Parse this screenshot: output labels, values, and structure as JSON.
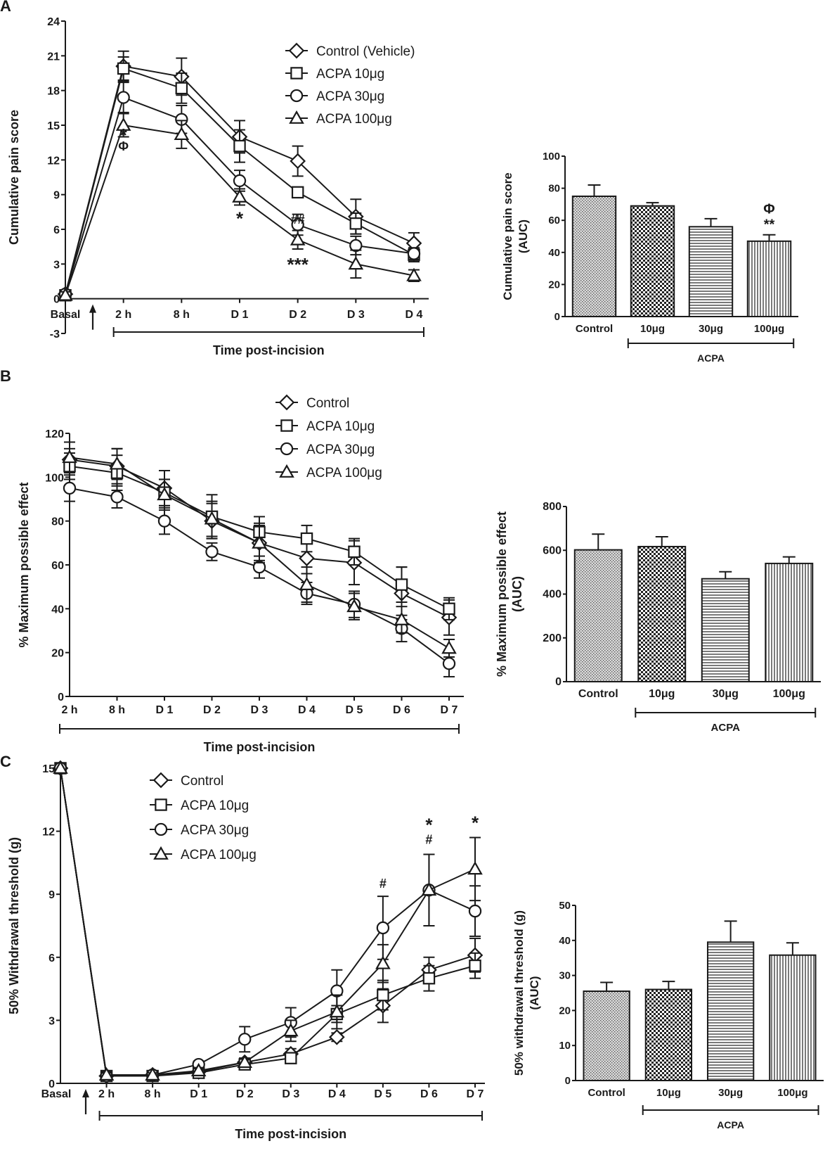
{
  "panel_labels": [
    "A",
    "B",
    "C"
  ],
  "symbols": {
    "diamond": "diamond",
    "square": "square",
    "circle": "circle",
    "triangle": "triangle"
  },
  "chart_data": [
    {
      "id": "A-line",
      "type": "line",
      "ylabel": "Cumulative pain score",
      "xlabel": "Time post-incision",
      "ylim": [
        -3,
        24
      ],
      "yticks": [
        -3,
        0,
        3,
        6,
        9,
        12,
        15,
        18,
        21,
        24
      ],
      "categories": [
        "Basal",
        "2 h",
        "8 h",
        "D 1",
        "D 2",
        "D 3",
        "D 4"
      ],
      "series": [
        {
          "name": "Control (Vehicle)",
          "marker": "diamond",
          "values": [
            0.4,
            20.1,
            19.2,
            14.0,
            11.9,
            7.1,
            4.8
          ],
          "errors": [
            0.3,
            1.3,
            1.6,
            1.4,
            1.3,
            1.5,
            0.9
          ]
        },
        {
          "name": "ACPA 10μg",
          "marker": "square",
          "values": [
            0.3,
            19.9,
            18.2,
            13.2,
            9.2,
            6.5,
            3.8
          ],
          "errors": [
            0.3,
            1.0,
            1.3,
            1.4,
            0.0,
            0.9,
            0.6
          ]
        },
        {
          "name": "ACPA 30μg",
          "marker": "circle",
          "values": [
            0.4,
            17.4,
            15.5,
            10.2,
            6.4,
            4.6,
            3.9
          ],
          "errors": [
            0.3,
            1.3,
            1.2,
            0.9,
            0.9,
            0.8,
            0.5
          ]
        },
        {
          "name": "ACPA 100μg",
          "marker": "triangle",
          "values": [
            0.3,
            15.0,
            14.2,
            8.8,
            5.1,
            3.0,
            2.0
          ],
          "errors": [
            0.3,
            1.0,
            1.2,
            0.7,
            0.8,
            1.2,
            0.5
          ]
        }
      ],
      "annotations": [
        {
          "text": "*",
          "cat": 1,
          "y": 13.6
        },
        {
          "text": "Φ",
          "cat": 1,
          "y": 12.8
        },
        {
          "text": "*",
          "cat": 3,
          "y": 6.4
        },
        {
          "text": "##",
          "cat": 4,
          "y": 6.5
        },
        {
          "text": "***",
          "cat": 4,
          "y": 2.4
        }
      ],
      "bracket": {
        "from": 1,
        "to": 6
      }
    },
    {
      "id": "A-bar",
      "type": "bar",
      "ylabel": "Cumulative pain score (AUC)",
      "ylim": [
        0,
        100
      ],
      "yticks": [
        0,
        20,
        40,
        60,
        80,
        100
      ],
      "categories": [
        "Control",
        "10μg",
        "30μg",
        "100μg"
      ],
      "values": [
        75,
        69,
        56,
        47
      ],
      "errors": [
        7,
        2,
        5,
        4
      ],
      "annotations": [
        {
          "bar": 3,
          "lines": [
            "Φ",
            "**"
          ]
        }
      ],
      "group_label": "ACPA",
      "group_from": 1,
      "group_to": 3
    },
    {
      "id": "B-line",
      "type": "line",
      "ylabel": "% Maximum possible effect",
      "xlabel": "Time post-incision",
      "ylim": [
        0,
        120
      ],
      "yticks": [
        0,
        20,
        40,
        60,
        80,
        100,
        120
      ],
      "categories": [
        "2 h",
        "8 h",
        "D 1",
        "D 2",
        "D 3",
        "D 4",
        "D 5",
        "D 6",
        "D 7"
      ],
      "series": [
        {
          "name": "Control",
          "marker": "diamond",
          "values": [
            108,
            105,
            95,
            80,
            70,
            63,
            61,
            47,
            36
          ],
          "errors": [
            5,
            8,
            8,
            8,
            8,
            7,
            10,
            12,
            8
          ]
        },
        {
          "name": "ACPA 10μg",
          "marker": "square",
          "values": [
            105,
            102,
            93,
            82,
            75,
            72,
            66,
            51,
            40
          ],
          "errors": [
            6,
            8,
            6,
            10,
            7,
            6,
            6,
            8,
            5
          ]
        },
        {
          "name": "ACPA 30μg",
          "marker": "circle",
          "values": [
            95,
            91,
            80,
            66,
            59,
            47,
            42,
            31,
            15
          ],
          "errors": [
            6,
            5,
            6,
            4,
            5,
            5,
            6,
            6,
            6
          ]
        },
        {
          "name": "ACPA 100μg",
          "marker": "triangle",
          "values": [
            109,
            106,
            92,
            81,
            70,
            51,
            41,
            35,
            22
          ],
          "errors": [
            7,
            7,
            7,
            8,
            9,
            8,
            6,
            6,
            4
          ]
        }
      ],
      "annotations": [],
      "bracket": {
        "from": 0,
        "to": 8
      }
    },
    {
      "id": "B-bar",
      "type": "bar",
      "ylabel": "% Maximum possible effect (AUC)",
      "ylim": [
        0,
        800
      ],
      "yticks": [
        0,
        200,
        400,
        600,
        800
      ],
      "categories": [
        "Control",
        "10μg",
        "30μg",
        "100μg"
      ],
      "values": [
        602,
        617,
        470,
        540
      ],
      "errors": [
        72,
        45,
        32,
        30
      ],
      "annotations": [],
      "group_label": "ACPA",
      "group_from": 1,
      "group_to": 3
    },
    {
      "id": "C-line",
      "type": "line",
      "ylabel": "50% Withdrawal threshold (g)",
      "xlabel": "Time post-incision",
      "ylim": [
        0,
        15
      ],
      "yticks": [
        0,
        3,
        6,
        9,
        12,
        15
      ],
      "categories": [
        "Basal",
        "2 h",
        "8 h",
        "D 1",
        "D 2",
        "D 3",
        "D 4",
        "D 5",
        "D 6",
        "D 7"
      ],
      "series": [
        {
          "name": "Control",
          "marker": "diamond",
          "values": [
            15,
            0.35,
            0.4,
            0.55,
            1.0,
            1.4,
            2.2,
            3.7,
            5.4,
            6.1
          ],
          "errors": [
            0,
            0.1,
            0.1,
            0.15,
            0.2,
            0.25,
            0.2,
            0.8,
            0.6,
            0.8
          ]
        },
        {
          "name": "ACPA 10μg",
          "marker": "square",
          "values": [
            15,
            0.35,
            0.35,
            0.5,
            0.9,
            1.2,
            3.3,
            4.2,
            5.0,
            5.6
          ],
          "errors": [
            0,
            0.1,
            0.1,
            0.15,
            0.2,
            0.25,
            0.4,
            0.7,
            0.6,
            0.6
          ]
        },
        {
          "name": "ACPA 30μg",
          "marker": "circle",
          "values": [
            15,
            0.35,
            0.4,
            0.9,
            2.1,
            2.9,
            4.4,
            7.4,
            9.2,
            8.2
          ],
          "errors": [
            0,
            0.1,
            0.1,
            0.15,
            0.6,
            0.7,
            1.0,
            1.5,
            1.7,
            1.2
          ]
        },
        {
          "name": "ACPA 100μg",
          "marker": "triangle",
          "values": [
            15,
            0.4,
            0.4,
            0.6,
            1.0,
            2.5,
            3.4,
            5.7,
            9.2,
            10.2
          ],
          "errors": [
            0,
            0.1,
            0.1,
            0.15,
            0.2,
            0.5,
            0.8,
            0.9,
            1.7,
            1.5
          ]
        }
      ],
      "annotations": [
        {
          "text": "#",
          "cat": 7,
          "y": 9.3
        },
        {
          "text": "#",
          "cat": 8,
          "y": 11.4
        },
        {
          "text": "*",
          "cat": 8,
          "y": 12.0
        },
        {
          "text": "*",
          "cat": 9,
          "y": 12.1
        }
      ],
      "bracket": {
        "from": 1,
        "to": 9
      }
    },
    {
      "id": "C-bar",
      "type": "bar",
      "ylabel": "50% withdrawal threshold (g) (AUC)",
      "ylim": [
        0,
        50
      ],
      "yticks": [
        0,
        10,
        20,
        30,
        40,
        50
      ],
      "categories": [
        "Control",
        "10μg",
        "30μg",
        "100μg"
      ],
      "values": [
        25.5,
        26,
        39.5,
        35.8
      ],
      "errors": [
        2.5,
        2.3,
        6,
        3.5
      ],
      "annotations": [],
      "group_label": "ACPA",
      "group_from": 1,
      "group_to": 3
    }
  ]
}
